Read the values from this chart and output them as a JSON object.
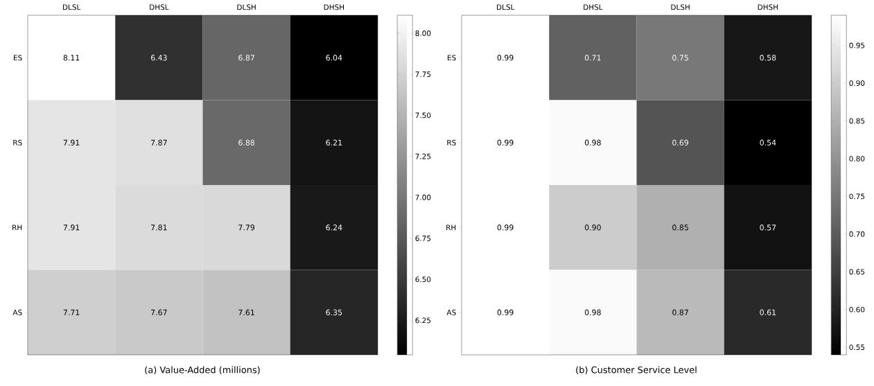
{
  "chart_data": [
    {
      "type": "heatmap",
      "title": "(a) Value-Added (millions)",
      "categories": [
        "DLSL",
        "DHSL",
        "DLSH",
        "DHSH"
      ],
      "y_categories": [
        "ES",
        "RS",
        "RH",
        "AS"
      ],
      "cells": [
        [
          8.11,
          6.43,
          6.87,
          6.04
        ],
        [
          7.91,
          7.87,
          6.88,
          6.21
        ],
        [
          7.91,
          7.81,
          7.79,
          6.24
        ],
        [
          7.71,
          7.67,
          7.61,
          6.35
        ]
      ],
      "cell_labels": [
        [
          "8.11",
          "6.43",
          "6.87",
          "6.04"
        ],
        [
          "7.91",
          "7.87",
          "6.88",
          "6.21"
        ],
        [
          "7.91",
          "7.81",
          "7.79",
          "6.24"
        ],
        [
          "7.71",
          "7.67",
          "7.61",
          "6.35"
        ]
      ],
      "clim": [
        6.04,
        8.11
      ],
      "cticks": [
        {
          "value": 6.25,
          "label": "6.25"
        },
        {
          "value": 6.5,
          "label": "6.50"
        },
        {
          "value": 6.75,
          "label": "6.75"
        },
        {
          "value": 7.0,
          "label": "7.00"
        },
        {
          "value": 7.25,
          "label": "7.25"
        },
        {
          "value": 7.5,
          "label": "7.50"
        },
        {
          "value": 7.75,
          "label": "7.75"
        },
        {
          "value": 8.0,
          "label": "8.00"
        }
      ]
    },
    {
      "type": "heatmap",
      "title": "(b) Customer Service Level",
      "categories": [
        "DLSL",
        "DHSL",
        "DLSH",
        "DHSH"
      ],
      "y_categories": [
        "ES",
        "RS",
        "RH",
        "AS"
      ],
      "cells": [
        [
          0.99,
          0.71,
          0.75,
          0.58
        ],
        [
          0.99,
          0.98,
          0.69,
          0.54
        ],
        [
          0.99,
          0.9,
          0.85,
          0.57
        ],
        [
          0.99,
          0.98,
          0.87,
          0.61
        ]
      ],
      "cell_labels": [
        [
          "0.99",
          "0.71",
          "0.75",
          "0.58"
        ],
        [
          "0.99",
          "0.98",
          "0.69",
          "0.54"
        ],
        [
          "0.99",
          "0.90",
          "0.85",
          "0.57"
        ],
        [
          "0.99",
          "0.98",
          "0.87",
          "0.61"
        ]
      ],
      "clim": [
        0.54,
        0.99
      ],
      "cticks": [
        {
          "value": 0.55,
          "label": "0.55"
        },
        {
          "value": 0.6,
          "label": "0.60"
        },
        {
          "value": 0.65,
          "label": "0.65"
        },
        {
          "value": 0.7,
          "label": "0.70"
        },
        {
          "value": 0.75,
          "label": "0.75"
        },
        {
          "value": 0.8,
          "label": "0.80"
        },
        {
          "value": 0.85,
          "label": "0.85"
        },
        {
          "value": 0.9,
          "label": "0.90"
        },
        {
          "value": 0.95,
          "label": "0.95"
        }
      ]
    }
  ]
}
